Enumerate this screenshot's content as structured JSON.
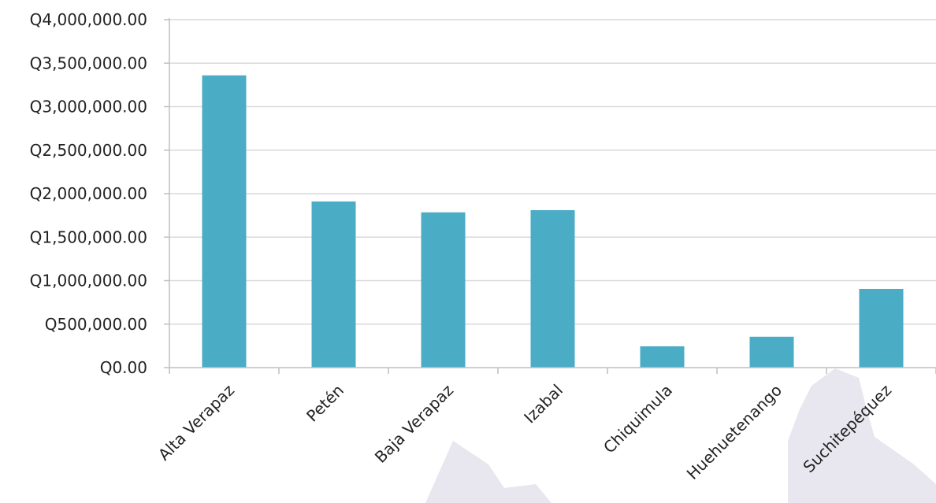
{
  "colors": {
    "bar": "#4BACC6",
    "grid": "#D9D9D9",
    "axis": "#BFBFBF",
    "text": "#222222",
    "watermark": "#E8E6EE"
  },
  "chart_data": {
    "type": "bar",
    "title": "",
    "xlabel": "",
    "ylabel": "",
    "categories": [
      "Alta Verapaz",
      "Petén",
      "Baja Verapaz",
      "Izabal",
      "Chiquimula",
      "Huehuetenango",
      "Suchitepéquez"
    ],
    "values": [
      3360000,
      1910000,
      1785000,
      1810000,
      245000,
      355000,
      905000
    ],
    "ylim": [
      0,
      4000000
    ],
    "yticks": [
      0,
      500000,
      1000000,
      1500000,
      2000000,
      2500000,
      3000000,
      3500000,
      4000000
    ],
    "ytick_labels": [
      "Q0.00",
      "Q500,000.00",
      "Q1,000,000.00",
      "Q1,500,000.00",
      "Q2,000,000.00",
      "Q2,500,000.00",
      "Q3,000,000.00",
      "Q3,500,000.00",
      "Q4,000,000.00"
    ],
    "grid": true,
    "legend": "none"
  }
}
